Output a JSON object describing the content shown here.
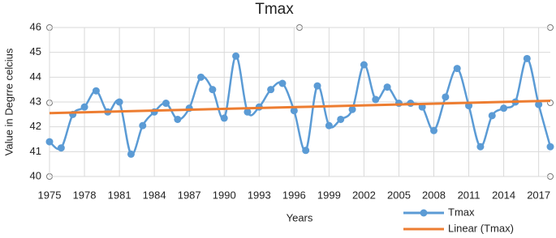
{
  "chart_data": {
    "type": "line",
    "title": "Tmax",
    "xlabel": "Years",
    "ylabel": "Value in Degrre celcius",
    "xlim": [
      1975,
      2018
    ],
    "xticks": [
      1975,
      1978,
      1981,
      1984,
      1987,
      1990,
      1993,
      1996,
      1999,
      2002,
      2005,
      2008,
      2011,
      2014,
      2017
    ],
    "ylim": [
      40,
      46
    ],
    "yticks": [
      40,
      41,
      42,
      43,
      44,
      45,
      46
    ],
    "grid": true,
    "legend": "bottom-right",
    "series": [
      {
        "name": "Tmax",
        "color": "#5b9bd5",
        "x": [
          1975,
          1976,
          1977,
          1978,
          1979,
          1980,
          1981,
          1982,
          1983,
          1984,
          1985,
          1986,
          1987,
          1988,
          1989,
          1990,
          1991,
          1992,
          1993,
          1994,
          1995,
          1996,
          1997,
          1998,
          1999,
          2000,
          2001,
          2002,
          2003,
          2004,
          2005,
          2006,
          2007,
          2008,
          2009,
          2010,
          2011,
          2012,
          2013,
          2014,
          2015,
          2016,
          2017,
          2018
        ],
        "values": [
          41.4,
          41.15,
          42.5,
          42.8,
          43.45,
          42.6,
          43.0,
          40.9,
          42.05,
          42.6,
          42.95,
          42.3,
          42.75,
          44.0,
          43.5,
          42.35,
          44.85,
          42.6,
          42.8,
          43.5,
          43.75,
          42.65,
          41.05,
          43.65,
          42.05,
          42.3,
          42.7,
          44.5,
          43.1,
          43.6,
          42.95,
          42.95,
          42.8,
          41.85,
          43.2,
          44.35,
          42.85,
          41.2,
          42.45,
          42.75,
          43.0,
          44.75,
          42.9,
          41.2
        ]
      },
      {
        "name": "Linear (Tmax)",
        "color": "#ed7d31",
        "x": [
          1975,
          2018
        ],
        "values": [
          42.55,
          43.05
        ]
      }
    ]
  }
}
